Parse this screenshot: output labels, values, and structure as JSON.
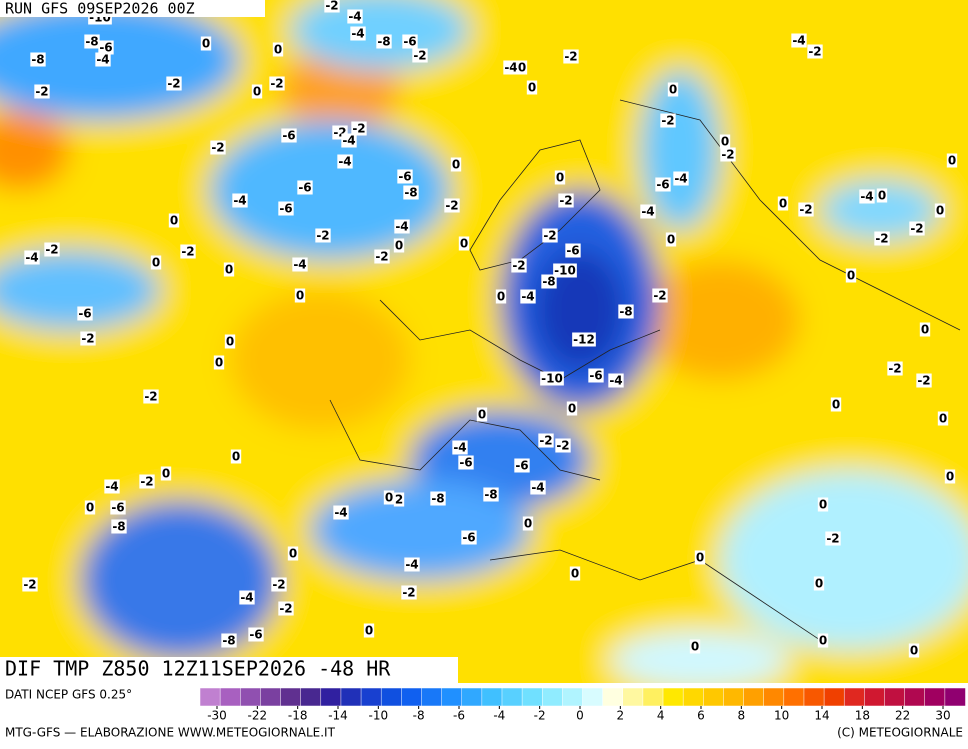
{
  "header": {
    "run": "RUN GFS 09SEP2026 00Z"
  },
  "footer": {
    "title": "DIF TMP Z850 12Z11SEP2026 -48 HR",
    "source": "DATI NCEP GFS 0.25°",
    "credit": "MTG-GFS — ELABORAZIONE WWW.METEOGIORNALE.IT",
    "copyright": "(C) METEOGIORNALE"
  },
  "legend": {
    "colors": [
      "#c080d0",
      "#a860c0",
      "#9050b0",
      "#7a40a0",
      "#603090",
      "#482890",
      "#3020a0",
      "#2030b8",
      "#1840d0",
      "#1050e0",
      "#1060f0",
      "#1878f8",
      "#2090ff",
      "#30a8ff",
      "#40c0ff",
      "#58d0ff",
      "#70e0ff",
      "#90ecff",
      "#b0f4ff",
      "#d8fcff",
      "#ffffe0",
      "#fff8a0",
      "#fff060",
      "#ffe800",
      "#ffd800",
      "#ffc800",
      "#ffb800",
      "#ffa000",
      "#ff8800",
      "#ff7000",
      "#f85800",
      "#f04000",
      "#e02820",
      "#d01830",
      "#c01040",
      "#b00850",
      "#a00060",
      "#900070"
    ],
    "ticks": [
      -30,
      -22,
      -18,
      -14,
      -10,
      -8,
      -6,
      -4,
      -2,
      0,
      2,
      4,
      6,
      8,
      10,
      14,
      18,
      22,
      30
    ]
  },
  "map": {
    "labels": [
      -10,
      -8,
      -6,
      -4,
      -8,
      -2,
      -2,
      0,
      0,
      -2,
      -4,
      -4,
      -8,
      -6,
      -2,
      -4,
      0,
      -2,
      0,
      0,
      -2,
      -2,
      -6,
      -2,
      -4,
      -2,
      -4,
      0,
      -6,
      -8,
      -6,
      -4,
      -6,
      -4,
      0,
      -2,
      -2,
      -2,
      -4,
      0,
      -2,
      0,
      0,
      0,
      -4,
      -2,
      -6,
      -2,
      0,
      0,
      -2,
      0,
      0,
      -2,
      -2,
      0,
      -6,
      -10,
      -8,
      -4,
      -2,
      0,
      -12,
      -8,
      -2,
      0,
      -4,
      -6,
      -4,
      -2,
      0,
      0,
      -2,
      -4,
      -2,
      0,
      -2,
      -4,
      0,
      0,
      -2,
      -2,
      0,
      0,
      0,
      -2,
      -2,
      0,
      0,
      -10,
      -6,
      -4,
      0,
      0,
      -4,
      -6,
      -6,
      -2,
      -2,
      -4,
      -8,
      -8,
      0,
      2,
      -4,
      0,
      -6,
      -4,
      -2,
      0,
      0,
      -2,
      -4,
      -2,
      -8,
      -6,
      0,
      -2,
      -8,
      -6,
      -4,
      -2,
      0,
      0,
      0,
      0,
      0,
      0,
      0,
      -2,
      0,
      0
    ]
  }
}
